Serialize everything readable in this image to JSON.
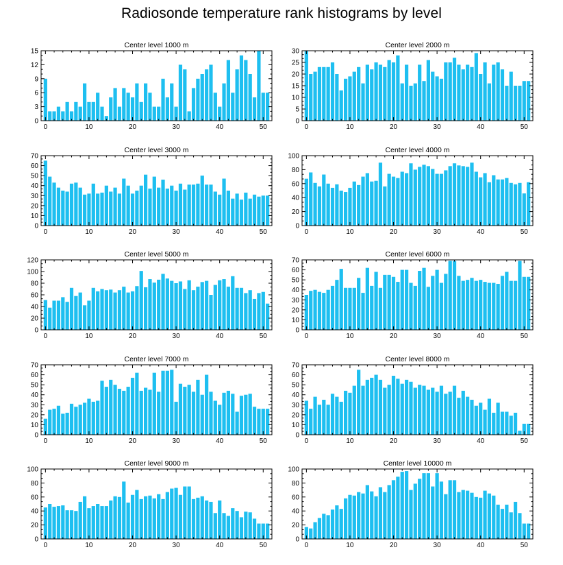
{
  "title": "Radiosonde temperature rank histograms by level",
  "colors": {
    "bar": "#1ebff0",
    "axis": "#000000",
    "background": "#ffffff"
  },
  "chart_data": [
    {
      "type": "bar",
      "title": "Center level 1000 m",
      "xlabel": "",
      "ylabel": "",
      "xlim": [
        -1,
        52
      ],
      "ylim": [
        0,
        15
      ],
      "xticks": [
        0,
        10,
        20,
        30,
        40,
        50
      ],
      "yticks": [
        0,
        3,
        6,
        9,
        12,
        15
      ],
      "x": [
        0,
        1,
        2,
        3,
        4,
        5,
        6,
        7,
        8,
        9,
        10,
        11,
        12,
        13,
        14,
        15,
        16,
        17,
        18,
        19,
        20,
        21,
        22,
        23,
        24,
        25,
        26,
        27,
        28,
        29,
        30,
        31,
        32,
        33,
        34,
        35,
        36,
        37,
        38,
        39,
        40,
        41,
        42,
        43,
        44,
        45,
        46,
        47,
        48,
        49,
        50,
        51
      ],
      "values": [
        9,
        2,
        2,
        3,
        2,
        4,
        2,
        4,
        3,
        8,
        4,
        4,
        6,
        3,
        1,
        5,
        7,
        3,
        7,
        6,
        5,
        8,
        4,
        8,
        6,
        3,
        3,
        9,
        5,
        8,
        3,
        12,
        11,
        2,
        7,
        9,
        10,
        11,
        12,
        6,
        3,
        8,
        13,
        6,
        11,
        14,
        13,
        10,
        5,
        15,
        6,
        6
      ]
    },
    {
      "type": "bar",
      "title": "Center level 2000 m",
      "xlabel": "",
      "ylabel": "",
      "xlim": [
        -1,
        52
      ],
      "ylim": [
        0,
        30
      ],
      "xticks": [
        0,
        10,
        20,
        30,
        40,
        50
      ],
      "yticks": [
        0,
        5,
        10,
        15,
        20,
        25,
        30
      ],
      "x": [
        0,
        1,
        2,
        3,
        4,
        5,
        6,
        7,
        8,
        9,
        10,
        11,
        12,
        13,
        14,
        15,
        16,
        17,
        18,
        19,
        20,
        21,
        22,
        23,
        24,
        25,
        26,
        27,
        28,
        29,
        30,
        31,
        32,
        33,
        34,
        35,
        36,
        37,
        38,
        39,
        40,
        41,
        42,
        43,
        44,
        45,
        46,
        47,
        48,
        49,
        50,
        51
      ],
      "values": [
        30,
        20,
        21,
        23,
        23,
        23,
        25,
        20,
        13,
        18,
        19,
        21,
        23,
        16,
        24,
        22,
        25,
        24,
        23,
        26,
        25,
        28,
        16,
        24,
        15,
        16,
        24,
        17,
        26,
        21,
        19,
        18,
        25,
        25,
        27,
        24,
        22,
        24,
        23,
        29,
        20,
        25,
        16,
        24,
        25,
        22,
        15,
        21,
        15,
        15,
        17,
        17
      ]
    },
    {
      "type": "bar",
      "title": "Center level 3000 m",
      "xlabel": "",
      "ylabel": "",
      "xlim": [
        -1,
        52
      ],
      "ylim": [
        0,
        70
      ],
      "xticks": [
        0,
        10,
        20,
        30,
        40,
        50
      ],
      "yticks": [
        0,
        10,
        20,
        30,
        40,
        50,
        60,
        70
      ],
      "x": [
        0,
        1,
        2,
        3,
        4,
        5,
        6,
        7,
        8,
        9,
        10,
        11,
        12,
        13,
        14,
        15,
        16,
        17,
        18,
        19,
        20,
        21,
        22,
        23,
        24,
        25,
        26,
        27,
        28,
        29,
        30,
        31,
        32,
        33,
        34,
        35,
        36,
        37,
        38,
        39,
        40,
        41,
        42,
        43,
        44,
        45,
        46,
        47,
        48,
        49,
        50,
        51
      ],
      "values": [
        65,
        49,
        43,
        38,
        35,
        34,
        42,
        43,
        38,
        31,
        32,
        42,
        32,
        33,
        40,
        34,
        38,
        32,
        47,
        40,
        32,
        35,
        40,
        51,
        37,
        49,
        38,
        46,
        37,
        40,
        35,
        42,
        36,
        41,
        41,
        42,
        50,
        41,
        41,
        34,
        31,
        47,
        35,
        27,
        32,
        26,
        33,
        27,
        31,
        29,
        30,
        30
      ]
    },
    {
      "type": "bar",
      "title": "Center level 4000 m",
      "xlabel": "",
      "ylabel": "",
      "xlim": [
        -1,
        52
      ],
      "ylim": [
        0,
        100
      ],
      "xticks": [
        0,
        10,
        20,
        30,
        40,
        50
      ],
      "yticks": [
        0,
        20,
        40,
        60,
        80,
        100
      ],
      "x": [
        0,
        1,
        2,
        3,
        4,
        5,
        6,
        7,
        8,
        9,
        10,
        11,
        12,
        13,
        14,
        15,
        16,
        17,
        18,
        19,
        20,
        21,
        22,
        23,
        24,
        25,
        26,
        27,
        28,
        29,
        30,
        31,
        32,
        33,
        34,
        35,
        36,
        37,
        38,
        39,
        40,
        41,
        42,
        43,
        44,
        45,
        46,
        47,
        48,
        49,
        50,
        51
      ],
      "values": [
        67,
        76,
        61,
        56,
        73,
        60,
        54,
        59,
        50,
        48,
        54,
        63,
        58,
        70,
        75,
        63,
        64,
        90,
        56,
        74,
        70,
        68,
        77,
        75,
        89,
        80,
        84,
        87,
        85,
        81,
        74,
        74,
        79,
        85,
        89,
        86,
        85,
        84,
        90,
        77,
        69,
        75,
        62,
        72,
        66,
        66,
        68,
        61,
        59,
        61,
        46,
        62
      ]
    },
    {
      "type": "bar",
      "title": "Center level 5000 m",
      "xlabel": "",
      "ylabel": "",
      "xlim": [
        -1,
        52
      ],
      "ylim": [
        0,
        120
      ],
      "xticks": [
        0,
        10,
        20,
        30,
        40,
        50
      ],
      "yticks": [
        0,
        20,
        40,
        60,
        80,
        100,
        120
      ],
      "x": [
        0,
        1,
        2,
        3,
        4,
        5,
        6,
        7,
        8,
        9,
        10,
        11,
        12,
        13,
        14,
        15,
        16,
        17,
        18,
        19,
        20,
        21,
        22,
        23,
        24,
        25,
        26,
        27,
        28,
        29,
        30,
        31,
        32,
        33,
        34,
        35,
        36,
        37,
        38,
        39,
        40,
        41,
        42,
        43,
        44,
        45,
        46,
        47,
        48,
        49,
        50,
        51
      ],
      "values": [
        51,
        38,
        50,
        50,
        56,
        48,
        72,
        58,
        64,
        42,
        50,
        72,
        66,
        70,
        68,
        69,
        64,
        68,
        74,
        64,
        66,
        75,
        101,
        73,
        87,
        81,
        86,
        96,
        88,
        84,
        80,
        83,
        70,
        85,
        68,
        74,
        82,
        84,
        60,
        77,
        85,
        87,
        74,
        92,
        72,
        72,
        63,
        68,
        53,
        63,
        65,
        45
      ]
    },
    {
      "type": "bar",
      "title": "Center level 6000 m",
      "xlabel": "",
      "ylabel": "",
      "xlim": [
        -1,
        52
      ],
      "ylim": [
        0,
        70
      ],
      "xticks": [
        0,
        10,
        20,
        30,
        40,
        50
      ],
      "yticks": [
        0,
        10,
        20,
        30,
        40,
        50,
        60,
        70
      ],
      "x": [
        0,
        1,
        2,
        3,
        4,
        5,
        6,
        7,
        8,
        9,
        10,
        11,
        12,
        13,
        14,
        15,
        16,
        17,
        18,
        19,
        20,
        21,
        22,
        23,
        24,
        25,
        26,
        27,
        28,
        29,
        30,
        31,
        32,
        33,
        34,
        35,
        36,
        37,
        38,
        39,
        40,
        41,
        42,
        43,
        44,
        45,
        46,
        47,
        48,
        49,
        50,
        51
      ],
      "values": [
        35,
        39,
        40,
        38,
        37,
        40,
        44,
        50,
        61,
        42,
        42,
        42,
        52,
        37,
        62,
        44,
        58,
        42,
        55,
        55,
        53,
        48,
        60,
        60,
        47,
        44,
        59,
        62,
        43,
        54,
        60,
        47,
        56,
        69,
        69,
        54,
        49,
        50,
        52,
        49,
        50,
        48,
        47,
        47,
        46,
        54,
        58,
        49,
        49,
        69,
        53,
        53
      ]
    },
    {
      "type": "bar",
      "title": "Center level 7000 m",
      "xlabel": "",
      "ylabel": "",
      "xlim": [
        -1,
        52
      ],
      "ylim": [
        0,
        70
      ],
      "xticks": [
        0,
        10,
        20,
        30,
        40,
        50
      ],
      "yticks": [
        0,
        10,
        20,
        30,
        40,
        50,
        60,
        70
      ],
      "x": [
        0,
        1,
        2,
        3,
        4,
        5,
        6,
        7,
        8,
        9,
        10,
        11,
        12,
        13,
        14,
        15,
        16,
        17,
        18,
        19,
        20,
        21,
        22,
        23,
        24,
        25,
        26,
        27,
        28,
        29,
        30,
        31,
        32,
        33,
        34,
        35,
        36,
        37,
        38,
        39,
        40,
        41,
        42,
        43,
        44,
        45,
        46,
        47,
        48,
        49,
        50,
        51
      ],
      "values": [
        16,
        25,
        26,
        29,
        21,
        22,
        31,
        28,
        30,
        32,
        36,
        33,
        34,
        54,
        48,
        55,
        50,
        46,
        44,
        48,
        57,
        62,
        44,
        47,
        45,
        62,
        43,
        64,
        64,
        65,
        33,
        51,
        48,
        50,
        43,
        55,
        40,
        60,
        43,
        34,
        30,
        42,
        44,
        41,
        23,
        39,
        40,
        41,
        28,
        26,
        26,
        26
      ]
    },
    {
      "type": "bar",
      "title": "Center level 8000 m",
      "xlabel": "",
      "ylabel": "",
      "xlim": [
        -1,
        52
      ],
      "ylim": [
        0,
        70
      ],
      "xticks": [
        0,
        10,
        20,
        30,
        40,
        50
      ],
      "yticks": [
        0,
        10,
        20,
        30,
        40,
        50,
        60,
        70
      ],
      "x": [
        0,
        1,
        2,
        3,
        4,
        5,
        6,
        7,
        8,
        9,
        10,
        11,
        12,
        13,
        14,
        15,
        16,
        17,
        18,
        19,
        20,
        21,
        22,
        23,
        24,
        25,
        26,
        27,
        28,
        29,
        30,
        31,
        32,
        33,
        34,
        35,
        36,
        37,
        38,
        39,
        40,
        41,
        42,
        43,
        44,
        45,
        46,
        47,
        48,
        49,
        50,
        51
      ],
      "values": [
        34,
        26,
        38,
        30,
        35,
        30,
        41,
        38,
        33,
        44,
        42,
        49,
        65,
        49,
        55,
        57,
        60,
        55,
        47,
        50,
        59,
        56,
        51,
        55,
        53,
        47,
        50,
        49,
        45,
        47,
        43,
        49,
        41,
        43,
        49,
        37,
        44,
        38,
        35,
        29,
        32,
        25,
        36,
        22,
        32,
        23,
        23,
        19,
        22,
        4,
        11,
        11
      ]
    },
    {
      "type": "bar",
      "title": "Center level 9000 m",
      "xlabel": "",
      "ylabel": "",
      "xlim": [
        -1,
        52
      ],
      "ylim": [
        0,
        100
      ],
      "xticks": [
        0,
        10,
        20,
        30,
        40,
        50
      ],
      "yticks": [
        0,
        20,
        40,
        60,
        80,
        100
      ],
      "x": [
        0,
        1,
        2,
        3,
        4,
        5,
        6,
        7,
        8,
        9,
        10,
        11,
        12,
        13,
        14,
        15,
        16,
        17,
        18,
        19,
        20,
        21,
        22,
        23,
        24,
        25,
        26,
        27,
        28,
        29,
        30,
        31,
        32,
        33,
        34,
        35,
        36,
        37,
        38,
        39,
        40,
        41,
        42,
        43,
        44,
        45,
        46,
        47,
        48,
        49,
        50,
        51
      ],
      "values": [
        45,
        50,
        46,
        47,
        48,
        41,
        41,
        40,
        53,
        61,
        44,
        47,
        50,
        47,
        47,
        55,
        61,
        60,
        82,
        52,
        63,
        70,
        57,
        61,
        62,
        58,
        64,
        57,
        67,
        72,
        73,
        63,
        75,
        75,
        57,
        59,
        61,
        55,
        53,
        37,
        55,
        37,
        33,
        44,
        40,
        31,
        39,
        38,
        29,
        22,
        22,
        22
      ]
    },
    {
      "type": "bar",
      "title": "Center level 10000 m",
      "xlabel": "",
      "ylabel": "",
      "xlim": [
        -1,
        52
      ],
      "ylim": [
        0,
        100
      ],
      "xticks": [
        0,
        10,
        20,
        30,
        40,
        50
      ],
      "yticks": [
        0,
        20,
        40,
        60,
        80,
        100
      ],
      "x": [
        0,
        1,
        2,
        3,
        4,
        5,
        6,
        7,
        8,
        9,
        10,
        11,
        12,
        13,
        14,
        15,
        16,
        17,
        18,
        19,
        20,
        21,
        22,
        23,
        24,
        25,
        26,
        27,
        28,
        29,
        30,
        31,
        32,
        33,
        34,
        35,
        36,
        37,
        38,
        39,
        40,
        41,
        42,
        43,
        44,
        45,
        46,
        47,
        48,
        49,
        50,
        51
      ],
      "values": [
        17,
        15,
        24,
        30,
        36,
        34,
        42,
        48,
        43,
        58,
        63,
        62,
        67,
        65,
        77,
        68,
        61,
        74,
        67,
        77,
        84,
        89,
        96,
        97,
        70,
        79,
        86,
        94,
        94,
        75,
        94,
        82,
        64,
        84,
        84,
        67,
        70,
        69,
        66,
        60,
        59,
        69,
        65,
        62,
        49,
        43,
        49,
        38,
        53,
        37,
        22,
        22
      ]
    }
  ]
}
